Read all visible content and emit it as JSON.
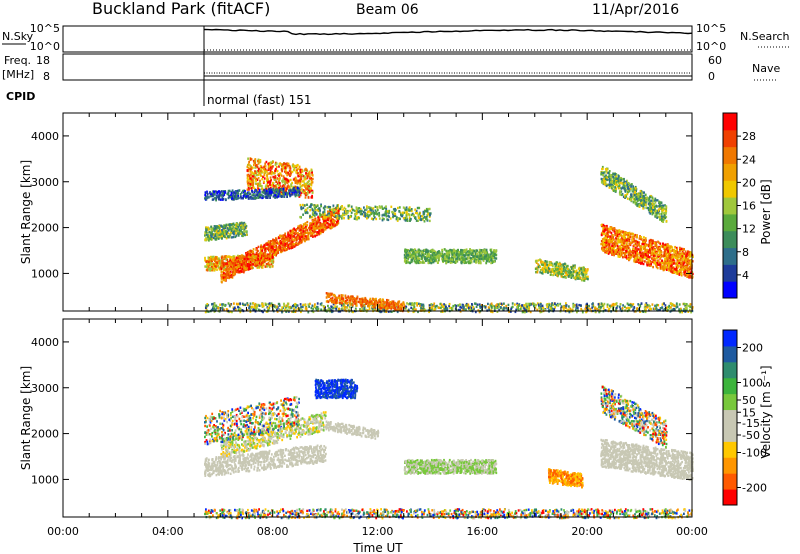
{
  "header": {
    "title": "Buckland Park (fitACF)",
    "beam": "Beam 06",
    "date": "11/Apr/2016"
  },
  "top_panels": {
    "nsky_label": "N.Sky",
    "nsky_ticks": [
      "10^5",
      "10^0"
    ],
    "nsearch_label": "N.Search",
    "nsearch_ticks": [
      "10^5",
      "10^0"
    ],
    "freq_label": "Freq.",
    "freq_unit": "[MHz]",
    "freq_ticks": [
      "18",
      "8"
    ],
    "nave_label": "Nave",
    "nave_ticks": [
      "60",
      "0"
    ],
    "cpid_label": "CPID",
    "cpid_text": "normal (fast) 151"
  },
  "colors": {
    "power_scale": [
      "#0000ff",
      "#1e3c9a",
      "#2e6e8a",
      "#3c8c5a",
      "#5aaa3c",
      "#a0c83c",
      "#f0c800",
      "#f0a000",
      "#f07800",
      "#f04000",
      "#ff0000"
    ],
    "velocity_scale": [
      "#ff0000",
      "#ff5a00",
      "#ff9600",
      "#ffc800",
      "#c8c8b4",
      "#c8c8b4",
      "#78c83c",
      "#3cb43c",
      "#2e8c6e",
      "#1e5aa0",
      "#0028ff"
    ]
  },
  "chart_data": [
    {
      "type": "heatmap",
      "name": "power",
      "xlabel": "",
      "ylabel": "Slant Range [km]",
      "y_ticks": [
        "1000",
        "2000",
        "3000",
        "4000"
      ],
      "ylim": [
        180,
        4500
      ],
      "colorbar_label": "Power [dB]",
      "colorbar_ticks": [
        "4",
        "8",
        "12",
        "16",
        "20",
        "24",
        "28"
      ],
      "colorbar_range": [
        0,
        32
      ]
    },
    {
      "type": "heatmap",
      "name": "velocity",
      "xlabel": "Time UT",
      "ylabel": "Slant Range [km]",
      "x_ticks": [
        "00:00",
        "04:00",
        "08:00",
        "12:00",
        "16:00",
        "20:00",
        "00:00"
      ],
      "y_ticks": [
        "1000",
        "2000",
        "3000",
        "4000"
      ],
      "ylim": [
        180,
        4500
      ],
      "colorbar_label": "Velocity [m s⁻¹]",
      "colorbar_ticks": [
        "-200",
        "-100",
        "-50",
        "-15",
        "15",
        "50",
        "100",
        "200"
      ],
      "colorbar_range": [
        -250,
        250
      ]
    }
  ]
}
